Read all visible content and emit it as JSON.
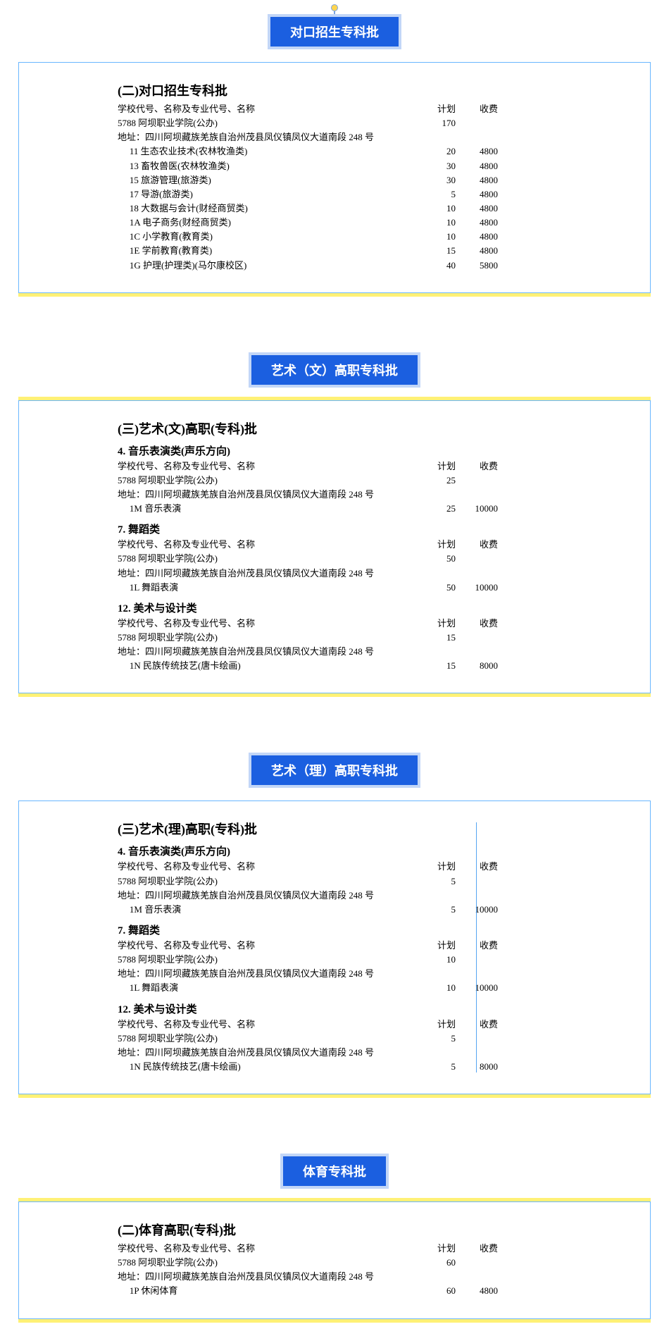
{
  "colors": {
    "title_bg": "#1b5fe0",
    "title_border": "#c2d6f7",
    "title_text": "#ffffff",
    "card_border": "#69b6ff",
    "accent": "#fff176",
    "text": "#000000",
    "pin_dot": "#ffd54f",
    "pin_line": "#7aa3e0",
    "vrule": "#55a4f2"
  },
  "common": {
    "header_label": "学校代号、名称及专业代号、名称",
    "plan_label": "计划",
    "fee_label": "收费",
    "school_line": "5788 阿坝职业学院(公办)",
    "address": "地址：四川阿坝藏族羌族自治州茂县凤仪镇凤仪大道南段 248 号"
  },
  "sections": [
    {
      "title": "对口招生专科批",
      "show_pin": true,
      "has_vrule": false,
      "heading": "(二)对口招生专科批",
      "groups": [
        {
          "subheading": null,
          "school_plan": 170,
          "rows": [
            {
              "label": "11 生态农业技术(农林牧渔类)",
              "plan": 20,
              "fee": 4800
            },
            {
              "label": "13 畜牧兽医(农林牧渔类)",
              "plan": 30,
              "fee": 4800
            },
            {
              "label": "15 旅游管理(旅游类)",
              "plan": 30,
              "fee": 4800
            },
            {
              "label": "17 导游(旅游类)",
              "plan": 5,
              "fee": 4800
            },
            {
              "label": "18 大数据与会计(财经商贸类)",
              "plan": 10,
              "fee": 4800
            },
            {
              "label": "1A 电子商务(财经商贸类)",
              "plan": 10,
              "fee": 4800
            },
            {
              "label": "1C 小学教育(教育类)",
              "plan": 10,
              "fee": 4800
            },
            {
              "label": "1E 学前教育(教育类)",
              "plan": 15,
              "fee": 4800
            },
            {
              "label": "1G 护理(护理类)(马尔康校区)",
              "plan": 40,
              "fee": 5800
            }
          ]
        }
      ]
    },
    {
      "title": "艺术（文）高职专科批",
      "show_pin": false,
      "has_vrule": false,
      "heading": "(三)艺术(文)高职(专科)批",
      "groups": [
        {
          "subheading": "4. 音乐表演类(声乐方向)",
          "school_plan": 25,
          "rows": [
            {
              "label": "1M 音乐表演",
              "plan": 25,
              "fee": 10000
            }
          ]
        },
        {
          "subheading": "7. 舞蹈类",
          "school_plan": 50,
          "rows": [
            {
              "label": "1L 舞蹈表演",
              "plan": 50,
              "fee": 10000
            }
          ]
        },
        {
          "subheading": "12. 美术与设计类",
          "school_plan": 15,
          "rows": [
            {
              "label": "1N 民族传统技艺(唐卡绘画)",
              "plan": 15,
              "fee": 8000
            }
          ]
        }
      ]
    },
    {
      "title": "艺术（理）高职专科批",
      "show_pin": false,
      "has_vrule": true,
      "heading": "(三)艺术(理)高职(专科)批",
      "groups": [
        {
          "subheading": "4. 音乐表演类(声乐方向)",
          "school_plan": 5,
          "rows": [
            {
              "label": "1M 音乐表演",
              "plan": 5,
              "fee": 10000
            }
          ]
        },
        {
          "subheading": "7. 舞蹈类",
          "school_plan": 10,
          "rows": [
            {
              "label": "1L 舞蹈表演",
              "plan": 10,
              "fee": 10000
            }
          ]
        },
        {
          "subheading": "12. 美术与设计类",
          "school_plan": 5,
          "rows": [
            {
              "label": "1N 民族传统技艺(唐卡绘画)",
              "plan": 5,
              "fee": 8000
            }
          ]
        }
      ]
    },
    {
      "title": "体育专科批",
      "show_pin": false,
      "has_vrule": false,
      "heading": "(二)体育高职(专科)批",
      "groups": [
        {
          "subheading": null,
          "school_plan": 60,
          "rows": [
            {
              "label": "1P 休闲体育",
              "plan": 60,
              "fee": 4800
            }
          ]
        }
      ]
    }
  ]
}
